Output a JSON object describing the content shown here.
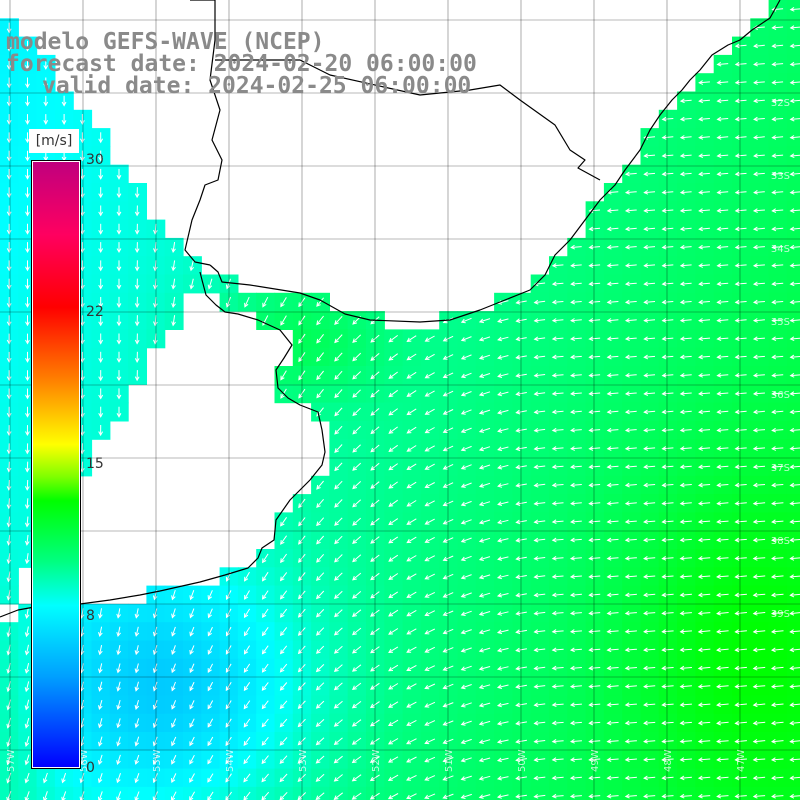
{
  "title": {
    "line1": "modelo GEFS-WAVE (NCEP)",
    "line2": "forecast date: 2024-02-20 06:00:00",
    "line3": "valid date: 2024-02-25 06:00:00"
  },
  "colorbar": {
    "unit": "[m/s]",
    "ticks": [
      "30",
      "22",
      "15",
      "8",
      "0"
    ],
    "min": 0,
    "max": 30,
    "colors": [
      "#0000ff",
      "#00a0ff",
      "#00ffff",
      "#00ff80",
      "#00ff00",
      "#ffff00",
      "#ff8000",
      "#ff0000",
      "#c0007e"
    ]
  },
  "grid": {
    "lat_labels": [
      "32S",
      "33S",
      "34S",
      "35S",
      "36S",
      "37S",
      "38S",
      "39S"
    ],
    "lon_labels": [
      "57W",
      "56W",
      "55W",
      "54W",
      "53W",
      "52W",
      "51W",
      "50W",
      "49W",
      "48W",
      "47W"
    ]
  },
  "colors": {
    "land": "#ffffff",
    "coast": "#000000",
    "grid": "#000000",
    "arrow": "#ffffff",
    "title": "#8a8a8a"
  }
}
